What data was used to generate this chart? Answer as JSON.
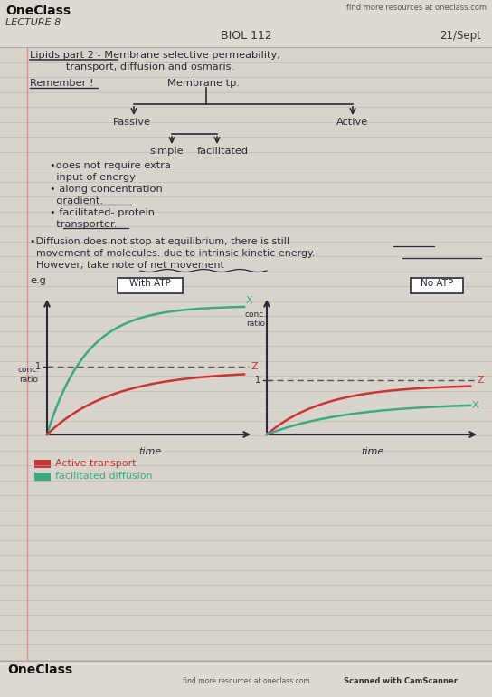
{
  "bg_color": "#d8d4cc",
  "paper_color": "#eeebe3",
  "line_color": "#b8b4ac",
  "header_color": "#dedad2",
  "ink_color": "#2a2a3a",
  "green_color": "#3aaa82",
  "red_color": "#cc3333",
  "dark_color": "#222222",
  "margin_color": "#cc8888",
  "title_oneclass": "OneClass",
  "title_lecture": "LECTURE 8",
  "title_center": "BIOL 112",
  "title_date": "21/Sept",
  "title_website": "find more resources at oneclass.com",
  "heading1": "Lipids part 2 - Membrane selective permeability,",
  "heading2": "           transport, diffusion and osmaris.",
  "remember": "Remember !",
  "membrane_tp": "Membrane tp.",
  "passive": "Passive",
  "active": "Active",
  "simple_txt": "simple",
  "facilitated_txt": "facilitated",
  "b1": "•does not require extra",
  "b1b": "  input of energy",
  "b2": "• along concentration",
  "b2b": "  gradient.",
  "b3": "• facilitated- protein",
  "b3b": "  transporter.",
  "diff1": "•Diffusion does not stop at equilibrium, there is still",
  "diff2": "  movement of molecules. due to intrinsic kinetic energy.",
  "diff3": "  However, take note of net movement",
  "eg": "e.g",
  "with_atp": "With ATP",
  "no_atp": "No ATP",
  "conc_ratio_l": "conc.\nratio",
  "conc_ratio_r": "conc.\nratio",
  "time_l": "time",
  "time_r": "time",
  "x_l": "X",
  "z_l": "Z",
  "x_r": "X",
  "z_r": "Z",
  "leg1": "Active transport",
  "leg2": "facilitated diffusion",
  "footer_l": "OneClass",
  "footer_r": "find more resources at oneclass.com",
  "footer_scan": "Scanned with CamScanner"
}
